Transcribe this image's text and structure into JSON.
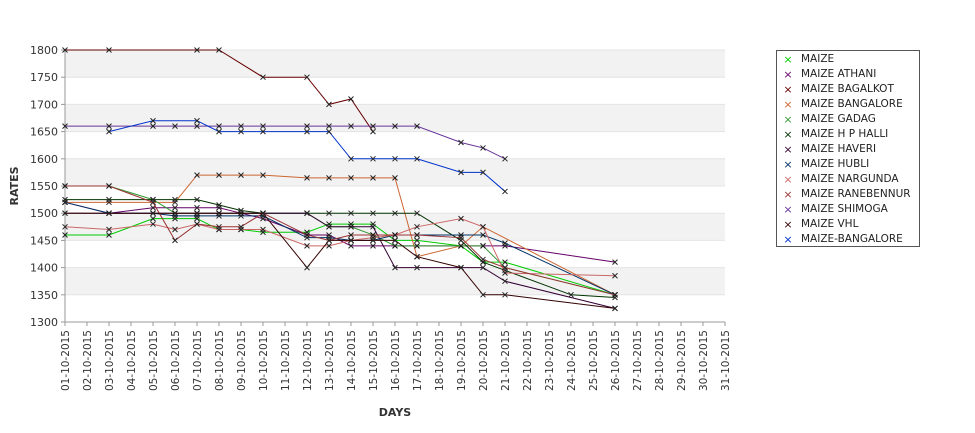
{
  "chart_data": {
    "type": "line",
    "xlabel": "DAYS",
    "ylabel": "RATES",
    "ylim": [
      1300,
      1800
    ],
    "yticks": [
      1300,
      1350,
      1400,
      1450,
      1500,
      1550,
      1600,
      1650,
      1700,
      1750,
      1800
    ],
    "x": [
      "01-10-2015",
      "02-10-2015",
      "03-10-2015",
      "04-10-2015",
      "05-10-2015",
      "06-10-2015",
      "07-10-2015",
      "08-10-2015",
      "09-10-2015",
      "10-10-2015",
      "11-10-2015",
      "12-10-2015",
      "13-10-2015",
      "14-10-2015",
      "15-10-2015",
      "16-10-2015",
      "17-10-2015",
      "18-10-2015",
      "19-10-2015",
      "20-10-2015",
      "21-10-2015",
      "22-10-2015",
      "23-10-2015",
      "24-10-2015",
      "25-10-2015",
      "26-10-2015",
      "27-10-2015",
      "28-10-2015",
      "29-10-2015",
      "30-10-2015",
      "31-10-2015"
    ],
    "grid": true,
    "legend_position": "right",
    "series": [
      {
        "name": "MAIZE",
        "color": "#00cc00",
        "points": [
          [
            1,
            1460
          ],
          [
            3,
            1460
          ],
          [
            5,
            1490
          ],
          [
            6,
            1490
          ],
          [
            7,
            1490
          ],
          [
            8,
            1470
          ],
          [
            9,
            1470
          ],
          [
            10,
            1465
          ],
          [
            12,
            1465
          ],
          [
            13,
            1480
          ],
          [
            14,
            1480
          ],
          [
            15,
            1480
          ],
          [
            16,
            1450
          ],
          [
            17,
            1450
          ],
          [
            19,
            1440
          ],
          [
            20,
            1410
          ],
          [
            21,
            1410
          ],
          [
            26,
            1350
          ]
        ]
      },
      {
        "name": "MAIZE ATHANI",
        "color": "#660066",
        "points": [
          [
            1,
            1520
          ],
          [
            3,
            1500
          ],
          [
            5,
            1510
          ],
          [
            6,
            1510
          ],
          [
            7,
            1510
          ],
          [
            8,
            1510
          ],
          [
            9,
            1500
          ],
          [
            10,
            1490
          ],
          [
            12,
            1460
          ],
          [
            13,
            1460
          ],
          [
            14,
            1440
          ],
          [
            15,
            1440
          ],
          [
            16,
            1440
          ],
          [
            17,
            1440
          ],
          [
            19,
            1440
          ],
          [
            20,
            1440
          ],
          [
            21,
            1440
          ],
          [
            26,
            1410
          ]
        ]
      },
      {
        "name": "MAIZE BAGALKOT",
        "color": "#660000",
        "points": [
          [
            1,
            1800
          ],
          [
            3,
            1800
          ],
          [
            7,
            1800
          ],
          [
            8,
            1800
          ],
          [
            10,
            1750
          ],
          [
            12,
            1750
          ],
          [
            13,
            1700
          ],
          [
            14,
            1710
          ],
          [
            15,
            1650
          ]
        ]
      },
      {
        "name": "MAIZE BANGALORE",
        "color": "#cc6633",
        "points": [
          [
            1,
            1520
          ],
          [
            3,
            1520
          ],
          [
            5,
            1520
          ],
          [
            6,
            1520
          ],
          [
            7,
            1570
          ],
          [
            8,
            1570
          ],
          [
            9,
            1570
          ],
          [
            10,
            1570
          ],
          [
            12,
            1565
          ],
          [
            13,
            1565
          ],
          [
            14,
            1565
          ],
          [
            15,
            1565
          ],
          [
            16,
            1565
          ],
          [
            17,
            1420
          ],
          [
            19,
            1440
          ],
          [
            20,
            1475
          ],
          [
            26,
            1350
          ]
        ]
      },
      {
        "name": "MAIZE GADAG",
        "color": "#339933",
        "points": [
          [
            1,
            1550
          ],
          [
            3,
            1550
          ],
          [
            5,
            1525
          ],
          [
            6,
            1500
          ],
          [
            7,
            1500
          ],
          [
            8,
            1500
          ],
          [
            9,
            1500
          ],
          [
            10,
            1500
          ],
          [
            12,
            1500
          ],
          [
            13,
            1475
          ],
          [
            14,
            1475
          ],
          [
            15,
            1460
          ],
          [
            16,
            1440
          ],
          [
            17,
            1440
          ],
          [
            19,
            1440
          ],
          [
            20,
            1440
          ],
          [
            21,
            1400
          ],
          [
            26,
            1350
          ]
        ]
      },
      {
        "name": "MAIZE H P HALLI",
        "color": "#003300",
        "points": [
          [
            1,
            1525
          ],
          [
            3,
            1525
          ],
          [
            5,
            1525
          ],
          [
            6,
            1525
          ],
          [
            7,
            1525
          ],
          [
            8,
            1515
          ],
          [
            9,
            1505
          ],
          [
            10,
            1500
          ],
          [
            12,
            1500
          ],
          [
            13,
            1500
          ],
          [
            14,
            1500
          ],
          [
            15,
            1500
          ],
          [
            16,
            1500
          ],
          [
            17,
            1500
          ],
          [
            19,
            1450
          ],
          [
            20,
            1410
          ],
          [
            21,
            1395
          ],
          [
            24,
            1350
          ],
          [
            26,
            1345
          ]
        ]
      },
      {
        "name": "MAIZE HAVERI",
        "color": "#330033",
        "points": [
          [
            1,
            1500
          ],
          [
            3,
            1500
          ],
          [
            5,
            1500
          ],
          [
            6,
            1500
          ],
          [
            7,
            1500
          ],
          [
            8,
            1500
          ],
          [
            9,
            1500
          ],
          [
            10,
            1500
          ],
          [
            12,
            1500
          ],
          [
            13,
            1475
          ],
          [
            14,
            1475
          ],
          [
            15,
            1475
          ],
          [
            16,
            1400
          ],
          [
            17,
            1400
          ],
          [
            19,
            1400
          ],
          [
            20,
            1400
          ],
          [
            21,
            1375
          ],
          [
            26,
            1325
          ]
        ]
      },
      {
        "name": "MAIZE HUBLI",
        "color": "#003366",
        "points": [
          [
            1,
            1520
          ],
          [
            3,
            1500
          ],
          [
            5,
            1500
          ],
          [
            6,
            1495
          ],
          [
            7,
            1495
          ],
          [
            8,
            1495
          ],
          [
            9,
            1495
          ],
          [
            10,
            1495
          ],
          [
            12,
            1455
          ],
          [
            13,
            1455
          ],
          [
            14,
            1450
          ],
          [
            15,
            1450
          ],
          [
            16,
            1460
          ],
          [
            17,
            1460
          ],
          [
            19,
            1460
          ],
          [
            20,
            1460
          ],
          [
            21,
            1445
          ],
          [
            26,
            1350
          ]
        ]
      },
      {
        "name": "MAIZE NARGUNDA",
        "color": "#cc6666",
        "points": [
          [
            1,
            1475
          ],
          [
            3,
            1470
          ],
          [
            5,
            1480
          ],
          [
            6,
            1470
          ],
          [
            7,
            1480
          ],
          [
            8,
            1470
          ],
          [
            9,
            1470
          ],
          [
            10,
            1470
          ],
          [
            12,
            1440
          ],
          [
            13,
            1440
          ],
          [
            14,
            1450
          ],
          [
            15,
            1455
          ],
          [
            16,
            1460
          ],
          [
            17,
            1475
          ],
          [
            19,
            1490
          ],
          [
            20,
            1475
          ],
          [
            21,
            1390
          ],
          [
            26,
            1385
          ]
        ]
      },
      {
        "name": "MAIZE RANEBENNUR",
        "color": "#993333",
        "points": [
          [
            1,
            1550
          ],
          [
            3,
            1550
          ],
          [
            5,
            1520
          ],
          [
            6,
            1450
          ],
          [
            7,
            1480
          ],
          [
            8,
            1475
          ],
          [
            9,
            1475
          ],
          [
            10,
            1500
          ],
          [
            12,
            1460
          ],
          [
            13,
            1450
          ],
          [
            14,
            1460
          ],
          [
            15,
            1460
          ],
          [
            16,
            1460
          ],
          [
            17,
            1460
          ],
          [
            19,
            1455
          ],
          [
            20,
            1415
          ],
          [
            21,
            1400
          ],
          [
            26,
            1350
          ]
        ]
      },
      {
        "name": "MAIZE SHIMOGA",
        "color": "#663399",
        "points": [
          [
            1,
            1660
          ],
          [
            3,
            1660
          ],
          [
            5,
            1660
          ],
          [
            6,
            1660
          ],
          [
            7,
            1660
          ],
          [
            8,
            1660
          ],
          [
            9,
            1660
          ],
          [
            10,
            1660
          ],
          [
            12,
            1660
          ],
          [
            13,
            1660
          ],
          [
            14,
            1660
          ],
          [
            15,
            1660
          ],
          [
            16,
            1660
          ],
          [
            17,
            1660
          ],
          [
            19,
            1630
          ],
          [
            20,
            1620
          ],
          [
            21,
            1600
          ]
        ]
      },
      {
        "name": "MAIZE VHL",
        "color": "#330000",
        "points": [
          [
            1,
            1500
          ],
          [
            3,
            1500
          ],
          [
            5,
            1500
          ],
          [
            6,
            1500
          ],
          [
            7,
            1500
          ],
          [
            8,
            1500
          ],
          [
            9,
            1500
          ],
          [
            10,
            1500
          ],
          [
            12,
            1400
          ],
          [
            13,
            1450
          ],
          [
            14,
            1450
          ],
          [
            15,
            1450
          ],
          [
            16,
            1450
          ],
          [
            17,
            1420
          ],
          [
            19,
            1400
          ],
          [
            20,
            1350
          ],
          [
            21,
            1350
          ],
          [
            26,
            1325
          ]
        ]
      },
      {
        "name": "MAIZE-BANGALORE",
        "color": "#0033cc",
        "points": [
          [
            3,
            1650
          ],
          [
            5,
            1670
          ],
          [
            7,
            1670
          ],
          [
            8,
            1650
          ],
          [
            9,
            1650
          ],
          [
            10,
            1650
          ],
          [
            12,
            1650
          ],
          [
            13,
            1650
          ],
          [
            14,
            1600
          ],
          [
            15,
            1600
          ],
          [
            16,
            1600
          ],
          [
            17,
            1600
          ],
          [
            19,
            1575
          ],
          [
            20,
            1575
          ],
          [
            21,
            1540
          ]
        ]
      }
    ]
  }
}
